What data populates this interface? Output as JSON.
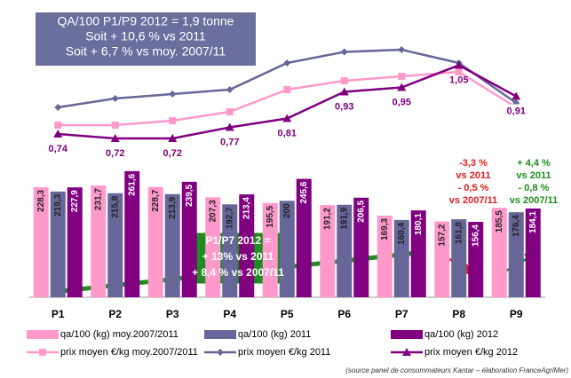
{
  "chart_data": {
    "type": "bar",
    "categories": [
      "P1",
      "P2",
      "P3",
      "P4",
      "P5",
      "P6",
      "P7",
      "P8",
      "P9"
    ],
    "ylim": [
      0,
      300
    ],
    "y2lim": [
      0.4,
      1.3
    ],
    "series": [
      {
        "name": "qa/100 (kg) moy.2007/2011",
        "type": "bar",
        "color": "#ff99cc",
        "values": [
          228.3,
          231.7,
          228.7,
          207.3,
          195.5,
          191.2,
          169.3,
          157.2,
          185.5
        ],
        "value_labels": [
          "228,3",
          "231,7",
          "228,7",
          "207,3",
          "195,5",
          "191,2",
          "169,3",
          "157,2",
          "185,5"
        ]
      },
      {
        "name": "qa/100 (kg) 2011",
        "type": "bar",
        "color": "#666699",
        "values": [
          219.3,
          215.8,
          213.9,
          192.7,
          200,
          191.9,
          160.4,
          161.8,
          176.4
        ],
        "value_labels": [
          "219,3",
          "215,8",
          "213,9",
          "192,7",
          "200",
          "191,9",
          "160,4",
          "161,8",
          "176,4"
        ]
      },
      {
        "name": "qa/100 (kg) 2012",
        "type": "bar",
        "color": "#800080",
        "values": [
          227.9,
          261.6,
          239.5,
          213.4,
          245.6,
          206.5,
          180.1,
          156.4,
          184.1
        ],
        "value_labels": [
          "227,9",
          "261,6",
          "239,5",
          "213,4",
          "245,6",
          "206,5",
          "180,1",
          "156,4",
          "184,1"
        ]
      },
      {
        "name": "prix moyen €/kg moy.2007/2011",
        "type": "line",
        "axis": "y2",
        "color": "#ff99cc",
        "marker": "square",
        "values": [
          0.78,
          0.78,
          0.8,
          0.84,
          0.94,
          0.98,
          1.0,
          1.02,
          0.86
        ]
      },
      {
        "name": "prix moyen €/kg 2011",
        "type": "line",
        "axis": "y2",
        "color": "#666699",
        "marker": "diamond",
        "values": [
          0.86,
          0.9,
          0.92,
          0.94,
          1.06,
          1.11,
          1.12,
          1.06,
          0.88
        ]
      },
      {
        "name": "prix moyen €/kg 2012",
        "type": "line",
        "axis": "y2",
        "color": "#800080",
        "marker": "triangle",
        "values": [
          0.74,
          0.72,
          0.72,
          0.77,
          0.81,
          0.93,
          0.95,
          1.05,
          0.91
        ],
        "value_labels": [
          "0,74",
          "0,72",
          "0,72",
          "0,77",
          "0,81",
          "0,93",
          "0,95",
          "1,05",
          "0,91"
        ]
      }
    ],
    "annotations": [
      {
        "lines": [
          "QA/100 P1/P9 2012 = 1,9 tonne",
          "Soit + 10,6 % vs 2011",
          "Soit + 6,7 % vs moy. 2007/11"
        ]
      },
      {
        "lines": [
          "P1/P7 2012 =",
          "+ 13% vs 2011",
          "+ 8,4 % vs 2007/11"
        ]
      },
      {
        "lines": [
          "-3,3 %",
          "vs 2011",
          "- 0,5 %",
          "vs 2007/11"
        ]
      },
      {
        "lines": [
          "+ 4,4 %",
          "vs 2011",
          "- 0,8 %",
          "vs 2007/11"
        ]
      }
    ],
    "source": "(source panel de consommateurs Kantar – élaboration FranceAgriMer)"
  }
}
